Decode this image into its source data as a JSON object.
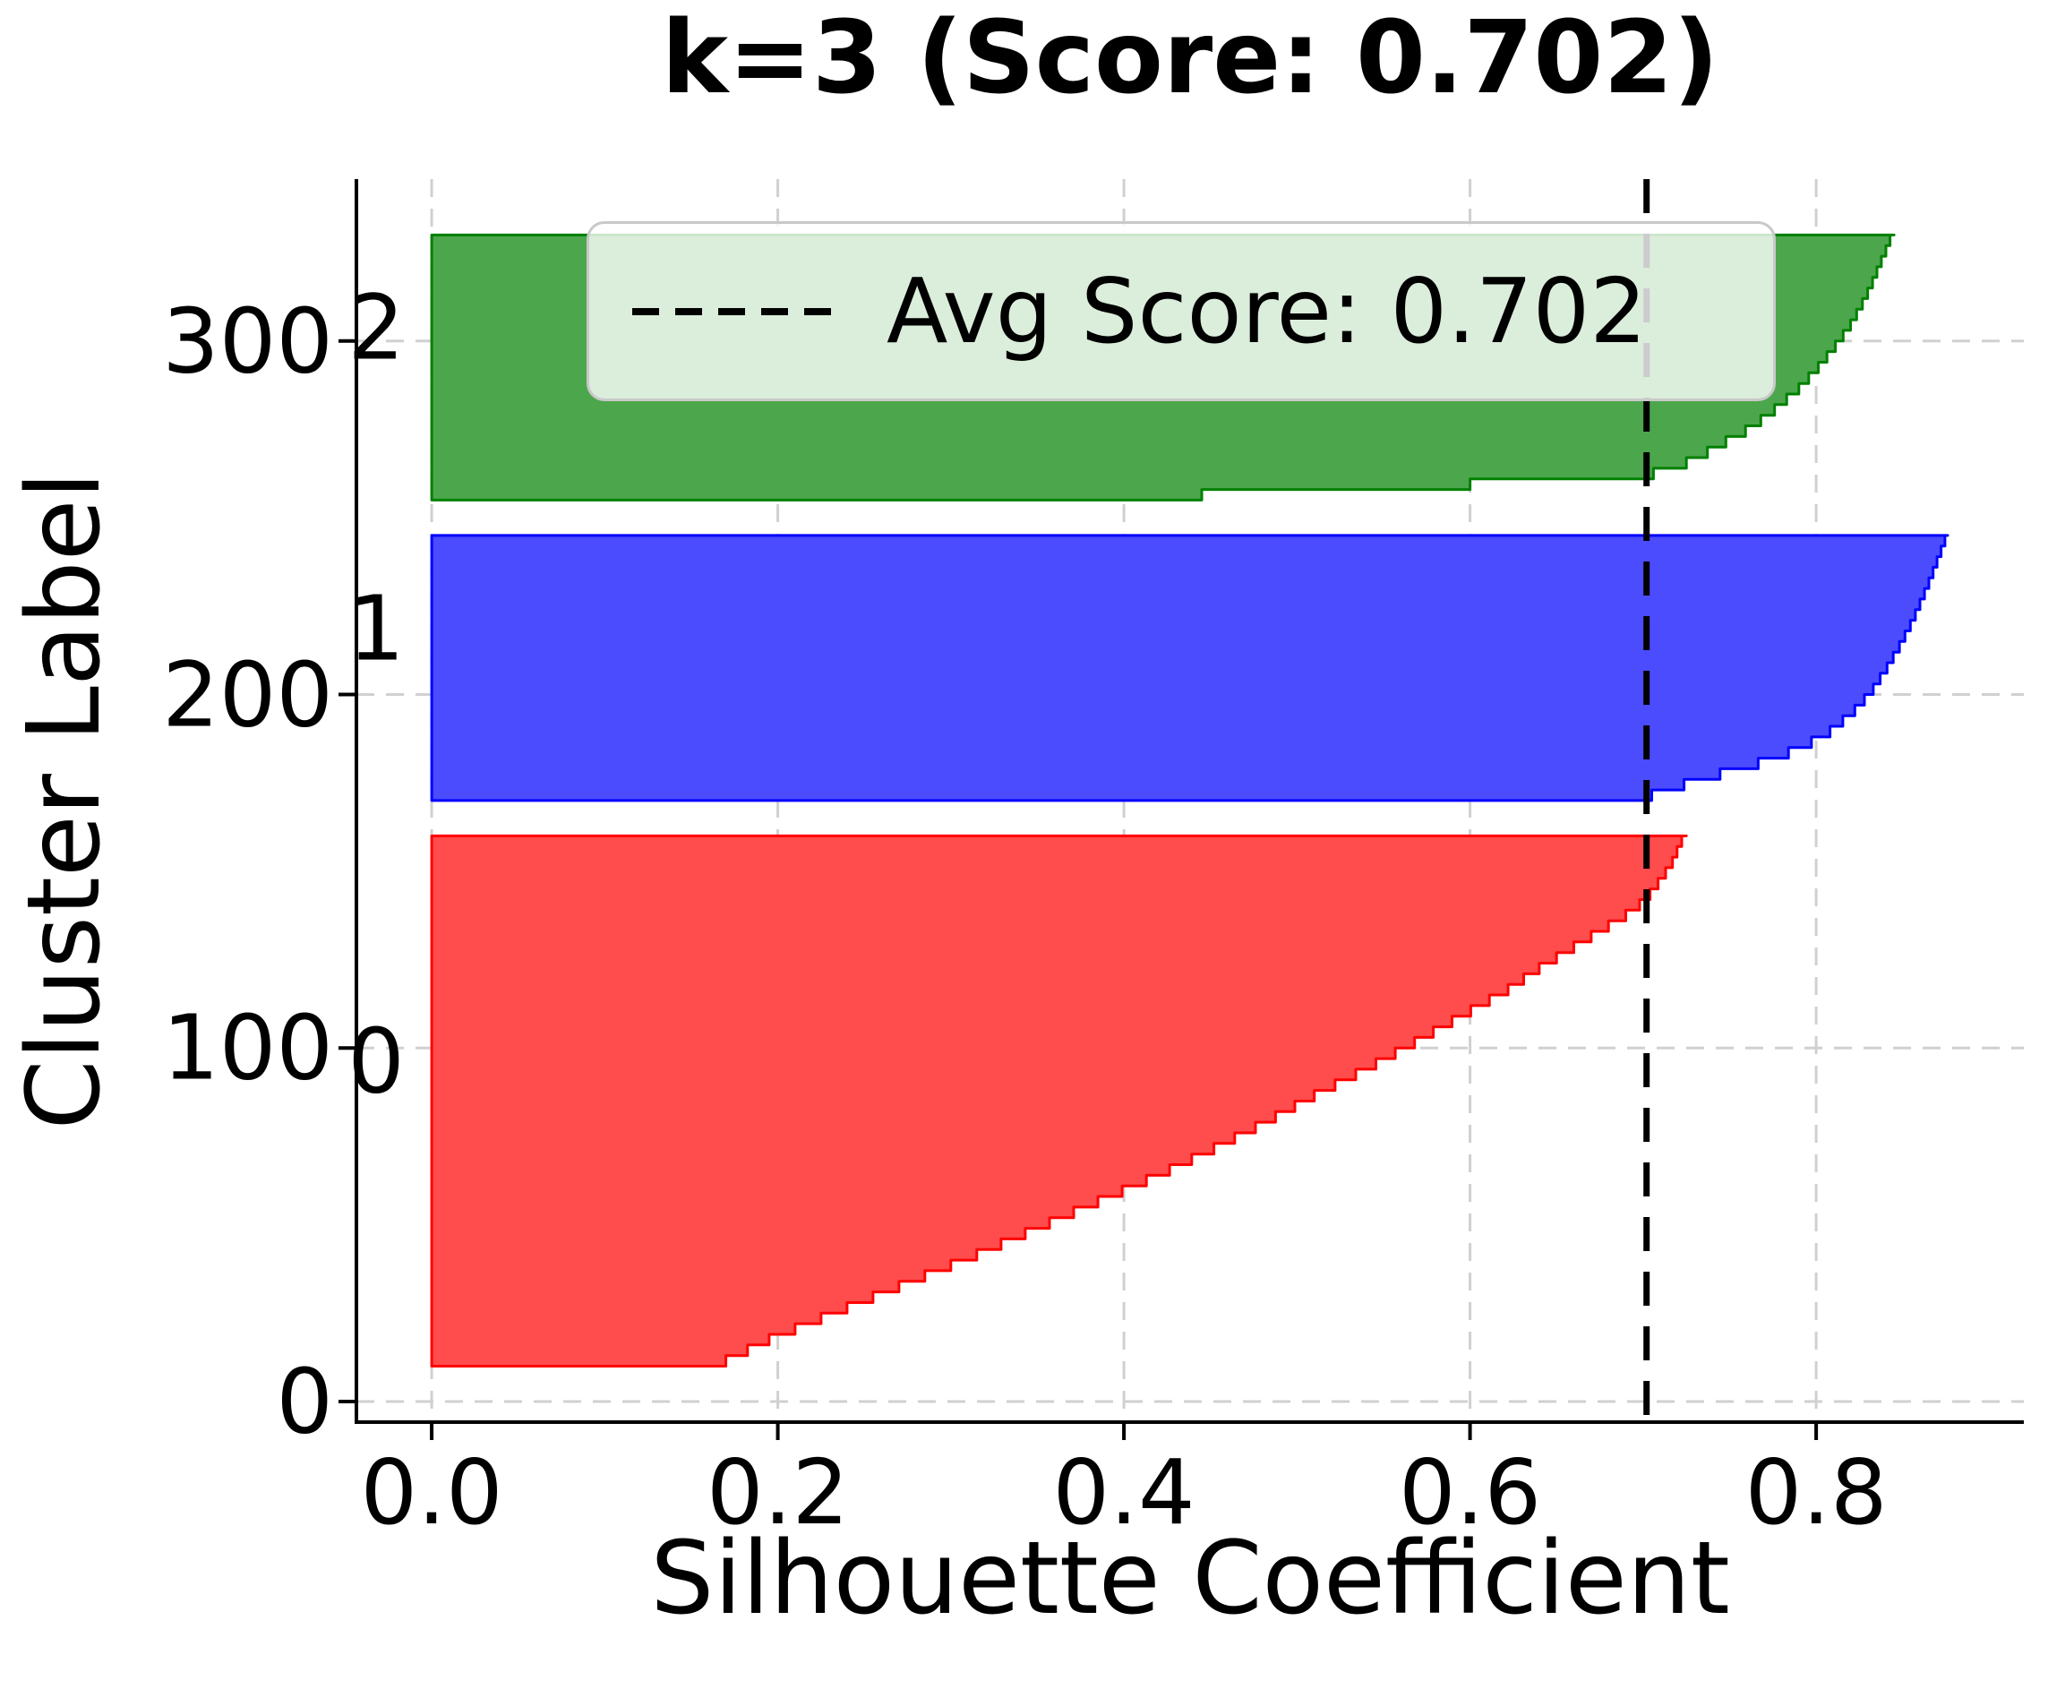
{
  "title": "k=3 (Score: 0.702)",
  "legend": {
    "label": "Avg Score: 0.702"
  },
  "chart_data": {
    "type": "area",
    "subtype": "silhouette-plot",
    "title": "k=3 (Score: 0.702)",
    "xlabel": "Silhouette Coefficient",
    "ylabel": "Cluster Label",
    "x_ticks": [
      0.0,
      0.2,
      0.4,
      0.6,
      0.8
    ],
    "y_ticks": [
      0,
      100,
      200,
      300
    ],
    "xlim": [
      -0.0435,
      0.92
    ],
    "ylim": [
      -5.83,
      345.8
    ],
    "grid": true,
    "grid_style": "dashed",
    "avg_score": 0.702,
    "avg_line_color": "#000000",
    "legend_position": "upper center",
    "n_samples": 300,
    "clusters": [
      {
        "label": "0",
        "size": 150,
        "y_lower": 10,
        "fill_color": "#ff4c4c",
        "edge_color": "#ff0000",
        "sil_min": 0.17,
        "sil_max": 0.725,
        "profile": [
          [
            0,
            0.17
          ],
          [
            0.04,
            0.195
          ],
          [
            0.08,
            0.225
          ],
          [
            0.12,
            0.255
          ],
          [
            0.16,
            0.285
          ],
          [
            0.2,
            0.315
          ],
          [
            0.25,
            0.35
          ],
          [
            0.3,
            0.385
          ],
          [
            0.35,
            0.42
          ],
          [
            0.4,
            0.452
          ],
          [
            0.45,
            0.482
          ],
          [
            0.5,
            0.51
          ],
          [
            0.55,
            0.54
          ],
          [
            0.6,
            0.568
          ],
          [
            0.65,
            0.595
          ],
          [
            0.7,
            0.622
          ],
          [
            0.74,
            0.64
          ],
          [
            0.78,
            0.66
          ],
          [
            0.82,
            0.68
          ],
          [
            0.85,
            0.695
          ],
          [
            0.88,
            0.704
          ],
          [
            0.91,
            0.711
          ],
          [
            0.94,
            0.717
          ],
          [
            0.97,
            0.721
          ],
          [
            1,
            0.725
          ]
        ]
      },
      {
        "label": "1",
        "size": 75,
        "y_lower": 170,
        "fill_color": "#4c4cff",
        "edge_color": "#0000ff",
        "sil_min": 0.705,
        "sil_max": 0.876,
        "profile": [
          [
            0,
            0.705
          ],
          [
            0.02,
            0.715
          ],
          [
            0.05,
            0.728
          ],
          [
            0.09,
            0.75
          ],
          [
            0.13,
            0.772
          ],
          [
            0.18,
            0.792
          ],
          [
            0.24,
            0.808
          ],
          [
            0.31,
            0.821
          ],
          [
            0.39,
            0.832
          ],
          [
            0.48,
            0.841
          ],
          [
            0.57,
            0.849
          ],
          [
            0.66,
            0.856
          ],
          [
            0.75,
            0.862
          ],
          [
            0.83,
            0.867
          ],
          [
            0.9,
            0.871
          ],
          [
            0.95,
            0.874
          ],
          [
            1,
            0.876
          ]
        ]
      },
      {
        "label": "2",
        "size": 75,
        "y_lower": 255,
        "fill_color": "#4ca64c",
        "edge_color": "#008000",
        "sil_min": 0.445,
        "sil_max": 0.845,
        "profile": [
          [
            0,
            0.445
          ],
          [
            0.015,
            0.5
          ],
          [
            0.03,
            0.565
          ],
          [
            0.05,
            0.635
          ],
          [
            0.07,
            0.7
          ],
          [
            0.1,
            0.718
          ],
          [
            0.14,
            0.732
          ],
          [
            0.19,
            0.745
          ],
          [
            0.25,
            0.762
          ],
          [
            0.32,
            0.776
          ],
          [
            0.4,
            0.79
          ],
          [
            0.47,
            0.8
          ],
          [
            0.55,
            0.81
          ],
          [
            0.63,
            0.819
          ],
          [
            0.71,
            0.826
          ],
          [
            0.79,
            0.832
          ],
          [
            0.87,
            0.837
          ],
          [
            0.93,
            0.841
          ],
          [
            1,
            0.845
          ]
        ]
      }
    ]
  }
}
